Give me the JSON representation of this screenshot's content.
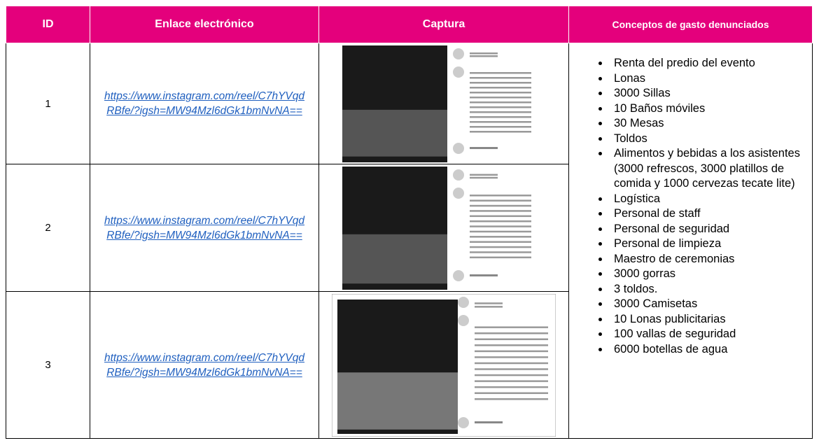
{
  "table": {
    "headers": [
      "ID",
      "Enlace electrónico",
      "Captura",
      "Conceptos de gasto denunciados"
    ],
    "rows": [
      {
        "id": "1",
        "link": "https://www.instagram.com/reel/C7hYVqdRBfe/?igsh=MW94Mzl6dGk1bmNvNA=="
      },
      {
        "id": "2",
        "link": "https://www.instagram.com/reel/C7hYVqdRBfe/?igsh=MW94Mzl6dGk1bmNvNA=="
      },
      {
        "id": "3",
        "link": "https://www.instagram.com/reel/C7hYVqdRBfe/?igsh=MW94Mzl6dGk1bmNvNA=="
      }
    ],
    "concepts": [
      "Renta del predio del evento",
      "Lonas",
      "3000 Sillas",
      "10 Baños móviles",
      "30 Mesas",
      "Toldos",
      "Alimentos y bebidas a los asistentes (3000 refrescos, 3000 platillos de comida y 1000 cervezas tecate lite)",
      "Logística",
      "Personal de staff",
      "Personal de seguridad",
      "Personal de limpieza",
      "Maestro de ceremonias",
      "3000 gorras",
      "3 toldos.",
      "3000 Camisetas",
      "10 Lonas publicitarias",
      "100 vallas de seguridad",
      "6000 botellas de agua"
    ]
  }
}
